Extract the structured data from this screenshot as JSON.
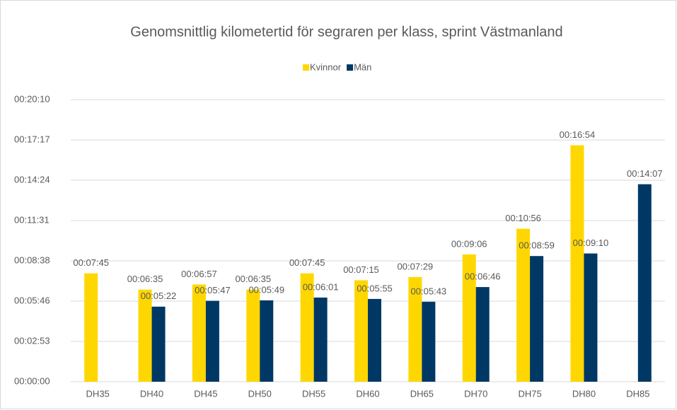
{
  "chart_data": {
    "type": "bar",
    "title": "Genomsnittlig kilometertid för segraren per klass, sprint Västmanland",
    "categories": [
      "DH35",
      "DH40",
      "DH45",
      "DH50",
      "DH55",
      "DH60",
      "DH65",
      "DH70",
      "DH75",
      "DH80",
      "DH85"
    ],
    "series": [
      {
        "name": "Kvinnor",
        "color": "#ffd700",
        "values": [
          465,
          395,
          417,
          395,
          465,
          435,
          449,
          546,
          656,
          1014,
          null
        ],
        "value_labels": [
          "00:07:45",
          "00:06:35",
          "00:06:57",
          "00:06:35",
          "00:07:45",
          "00:07:15",
          "00:07:29",
          "00:09:06",
          "00:10:56",
          "00:16:54",
          null
        ]
      },
      {
        "name": "Män",
        "color": "#003865",
        "values": [
          null,
          322,
          347,
          349,
          361,
          355,
          343,
          406,
          539,
          550,
          847
        ],
        "value_labels": [
          null,
          "00:05:22",
          "00:05:47",
          "00:05:49",
          "00:06:01",
          "00:05:55",
          "00:05:43",
          "00:06:46",
          "00:08:59",
          "00:09:10",
          "00:14:07"
        ]
      }
    ],
    "ylim": [
      0,
      1209.6
    ],
    "yticks": [
      {
        "value": 0,
        "label": "00:00:00"
      },
      {
        "value": 172.8,
        "label": "00:02:53"
      },
      {
        "value": 345.6,
        "label": "00:05:46"
      },
      {
        "value": 518.4,
        "label": "00:08:38"
      },
      {
        "value": 691.2,
        "label": "00:11:31"
      },
      {
        "value": 864,
        "label": "00:14:24"
      },
      {
        "value": 1036.8,
        "label": "00:17:17"
      },
      {
        "value": 1209.6,
        "label": "00:20:10"
      }
    ],
    "grid": true,
    "legend": "top"
  }
}
